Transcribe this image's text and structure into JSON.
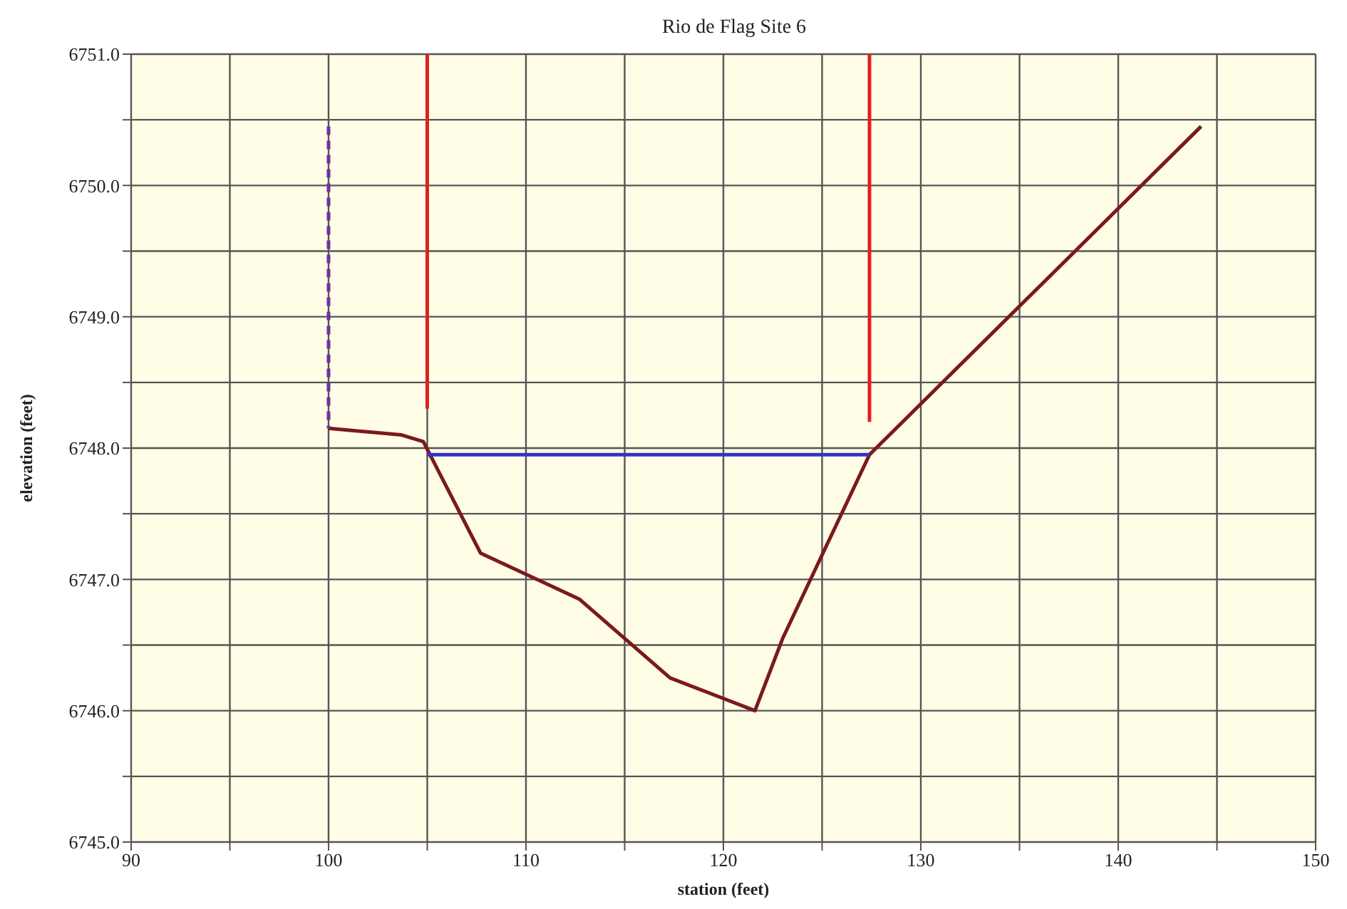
{
  "chart_data": {
    "type": "line",
    "title": "Rio de Flag Site 6",
    "xlabel": "station (feet)",
    "ylabel": "elevation (feet)",
    "xlim": [
      90,
      150
    ],
    "xticks": [
      90,
      {
        "value": 95,
        "label": null
      },
      100,
      {
        "value": 105,
        "label": null
      },
      110,
      {
        "value": 115,
        "label": null
      },
      120,
      {
        "value": 125,
        "label": null
      },
      130,
      {
        "value": 135,
        "label": null
      },
      140,
      {
        "value": 145,
        "label": null
      },
      150
    ],
    "ylim": [
      6745,
      6751
    ],
    "yticks": [
      {
        "value": 6745,
        "label": "6745.0"
      },
      {
        "value": 6745.5,
        "label": null
      },
      {
        "value": 6746,
        "label": "6746.0"
      },
      {
        "value": 6746.5,
        "label": null
      },
      {
        "value": 6747,
        "label": "6747.0"
      },
      {
        "value": 6747.5,
        "label": null
      },
      {
        "value": 6748,
        "label": "6748.0"
      },
      {
        "value": 6748.5,
        "label": null
      },
      {
        "value": 6749,
        "label": "6749.0"
      },
      {
        "value": 6749.5,
        "label": null
      },
      {
        "value": 6750,
        "label": "6750.0"
      },
      {
        "value": 6750.5,
        "label": null
      },
      {
        "value": 6751,
        "label": "6751.0"
      }
    ],
    "grid": true,
    "marker": "none",
    "series": [
      {
        "color": "#7b1a1a",
        "line_style": "solid",
        "x": [
          100,
          103.7,
          104.8,
          107.7,
          112.7,
          117.3,
          121.6,
          123.0,
          127.4,
          144.2
        ],
        "values": [
          6748.15,
          6748.1,
          6748.05,
          6747.2,
          6746.85,
          6746.25,
          6746.0,
          6746.55,
          6747.95,
          6750.45
        ]
      },
      {
        "color": "#3333cc",
        "line_style": "solid",
        "x": [
          105,
          127.4
        ],
        "values": [
          6747.95,
          6747.95
        ]
      },
      {
        "color": "#e02020",
        "line_style": "solid",
        "x": [
          105,
          105
        ],
        "values": [
          6751,
          6748.3
        ]
      },
      {
        "color": "#e02020",
        "line_style": "solid",
        "x": [
          127.4,
          127.4
        ],
        "values": [
          6751,
          6748.2
        ]
      },
      {
        "color": "#7030a0",
        "line_style": "dashed",
        "x": [
          100,
          100
        ],
        "values": [
          6750.45,
          6748.15
        ]
      }
    ]
  }
}
